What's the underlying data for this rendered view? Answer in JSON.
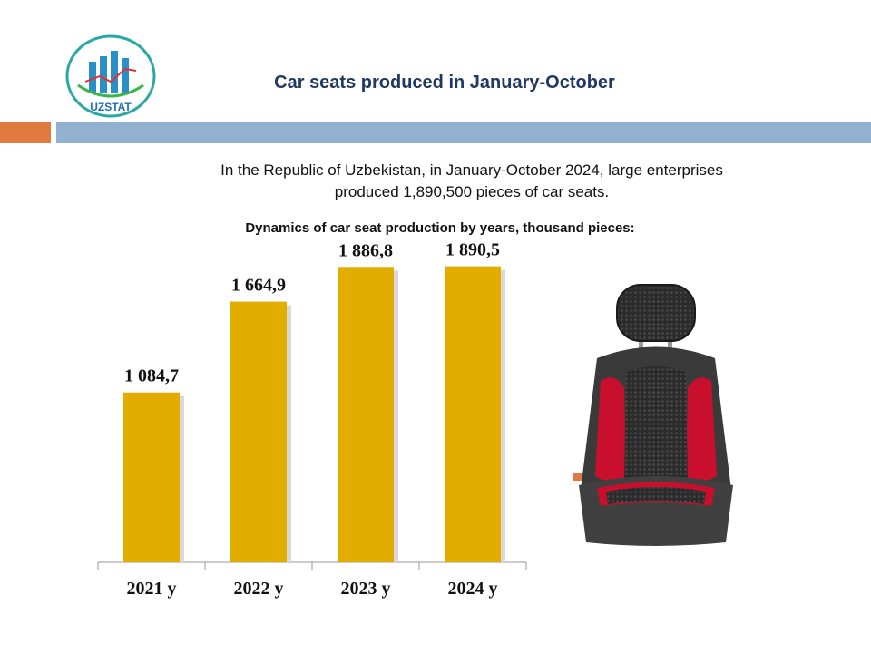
{
  "logo": {
    "text": "UZSTAT"
  },
  "header": {
    "title": "Car seats produced in January-October"
  },
  "intro": {
    "line1": "In the Republic of Uzbekistan, in January-October 2024, large enterprises",
    "line2": "produced 1,890,500 pieces of car seats."
  },
  "chart_data": {
    "type": "bar",
    "title": "Dynamics of car seat production by years, thousand pieces:",
    "categories": [
      "2021 y",
      "2022 y",
      "2023 y",
      "2024 y"
    ],
    "values": [
      1084.7,
      1664.9,
      1886.8,
      1890.5
    ],
    "value_labels": [
      "1 084,7",
      "1 664,9",
      "1 886,8",
      "1 890,5"
    ],
    "xlabel": "",
    "ylabel": "",
    "ylim": [
      0,
      1900
    ],
    "grid": false,
    "legend": "none",
    "colors": {
      "bar": "#e3ad00"
    }
  },
  "image": {
    "icon": "car-seat-icon"
  }
}
